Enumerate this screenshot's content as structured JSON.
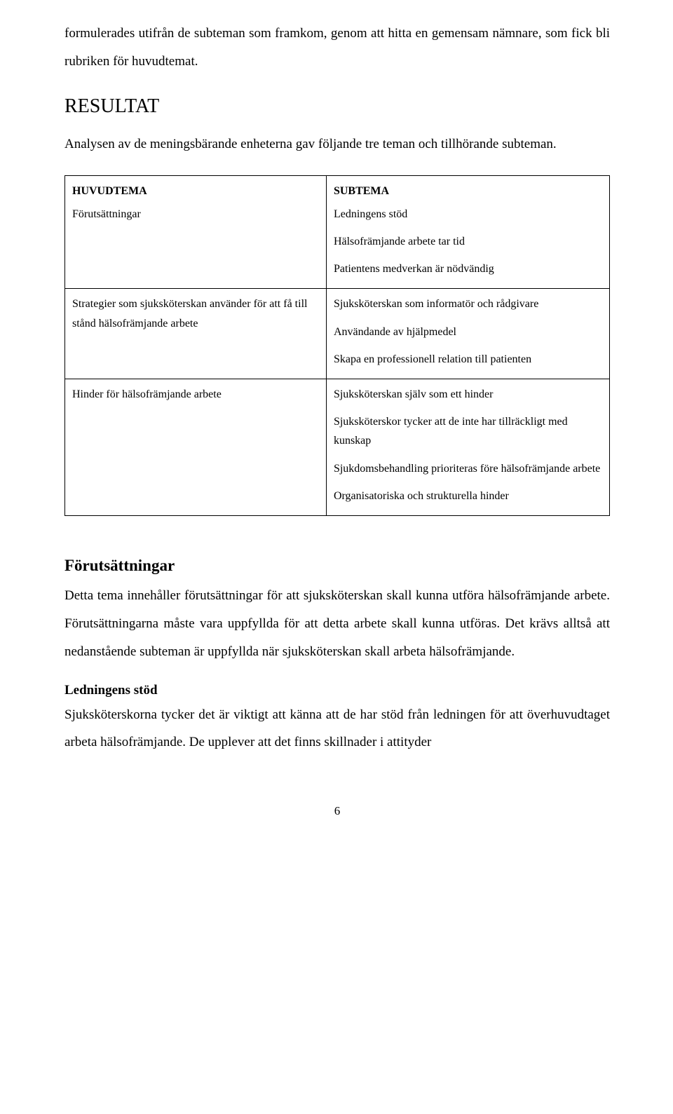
{
  "intro_para": "formulerades utifrån de subteman som framkom, genom att hitta en gemensam nämnare, som fick bli rubriken för huvudtemat.",
  "result_heading": "RESULTAT",
  "result_para": "Analysen av de meningsbärande enheterna gav följande tre teman och tillhörande subteman.",
  "table": {
    "head_left": "HUVUDTEMA",
    "head_right": "SUBTEMA",
    "row1": {
      "left": "Förutsättningar",
      "right1": "Ledningens stöd",
      "right2": "Hälsofrämjande arbete tar tid",
      "right3": "Patientens medverkan är nödvändig"
    },
    "row2": {
      "left": "Strategier som sjuksköterskan använder för att få till stånd hälsofrämjande arbete",
      "right1": "Sjuksköterskan som informatör och rådgivare",
      "right2": "Användande av hjälpmedel",
      "right3": "Skapa en professionell relation till patienten"
    },
    "row3": {
      "left": "Hinder för hälsofrämjande arbete",
      "right1": "Sjuksköterskan själv som ett hinder",
      "right2": "Sjuksköterskor tycker att de inte har tillräckligt med kunskap",
      "right3": "Sjukdomsbehandling prioriteras före hälsofrämjande arbete",
      "right4": "Organisatoriska och strukturella hinder"
    }
  },
  "section_heading": "Förutsättningar",
  "section_para": "Detta tema innehåller förutsättningar för att sjuksköterskan skall kunna utföra hälsofrämjande arbete. Förutsättningarna måste vara uppfyllda för att detta arbete skall kunna utföras. Det krävs alltså att nedanstående subteman är uppfyllda när sjuksköterskan skall arbeta hälsofrämjande.",
  "sub_heading": "Ledningens stöd",
  "sub_para": "Sjuksköterskorna tycker det är viktigt att känna att de har stöd från ledningen för att överhuvudtaget arbeta hälsofrämjande. De upplever att det finns skillnader i attityder",
  "pagenum": "6"
}
